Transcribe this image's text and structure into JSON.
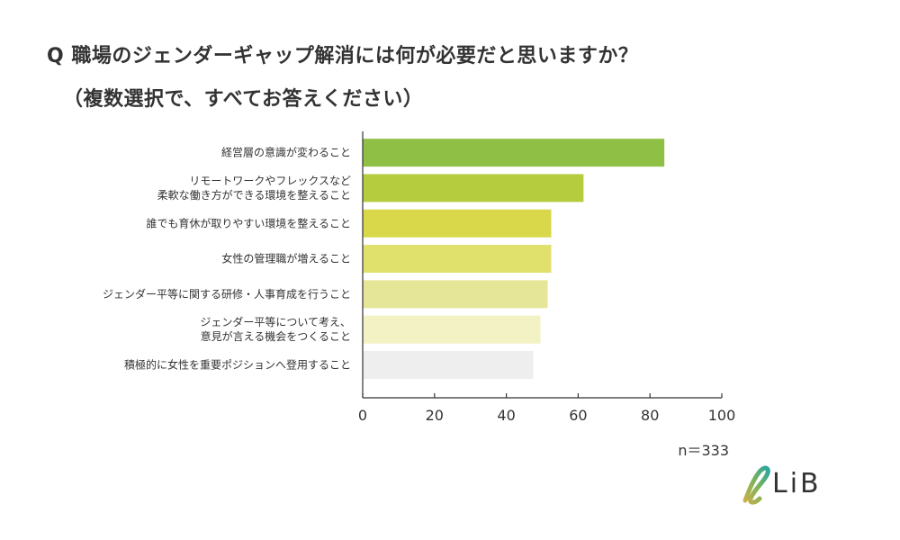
{
  "title": "Q 職場のジェンダーギャップ解消には何が必要だと思いますか？",
  "subtitle": "（複数選択で、すべてお答えください）",
  "sample_note": "n＝333",
  "logo": {
    "text": "LiB",
    "mark": "ℓ",
    "icon": "lib-leaf-logo-icon"
  },
  "chart_data": {
    "type": "bar",
    "orientation": "horizontal",
    "categories": [
      [
        "経営層の意識が変わること"
      ],
      [
        "リモートワークやフレックスなど",
        "柔軟な働き方ができる環境を整えること"
      ],
      [
        "誰でも育休が取りやすい環境を整えること"
      ],
      [
        "女性の管理職が増えること"
      ],
      [
        "ジェンダー平等に関する研修・人事育成を行うこと"
      ],
      [
        "ジェンダー平等について考え、",
        "意見が言える機会をつくること"
      ],
      [
        "積極的に女性を重要ポジションへ登用すること"
      ]
    ],
    "values": [
      84,
      61.5,
      52.5,
      52.5,
      51.5,
      49.5,
      47.5
    ],
    "colors": [
      "#8fbf45",
      "#b5cc3f",
      "#d8d84a",
      "#e0e06c",
      "#e6e698",
      "#f2f2c4",
      "#eeeeee"
    ],
    "xlim": [
      0,
      100
    ],
    "xticks": [
      0,
      20,
      40,
      60,
      80,
      100
    ],
    "grid": false
  }
}
